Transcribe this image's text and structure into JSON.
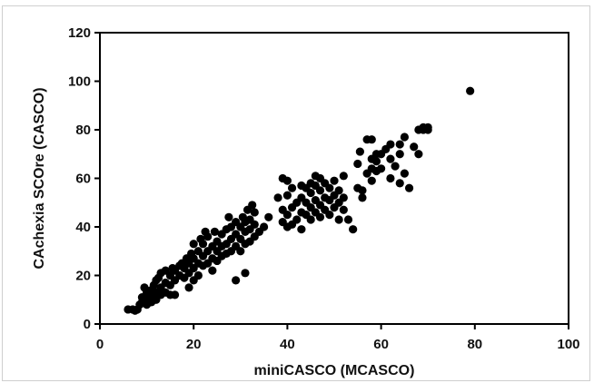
{
  "chart_data": {
    "type": "scatter",
    "title": "",
    "xlabel": "miniCASCO (MCASCO)",
    "ylabel": "CAchexia SCOre (CASCO)",
    "xlim": [
      0,
      100
    ],
    "ylim": [
      0,
      120
    ],
    "x_ticks": [
      0,
      20,
      40,
      60,
      80,
      100
    ],
    "y_ticks": [
      0,
      20,
      40,
      60,
      80,
      100,
      120
    ],
    "grid": false,
    "legend": "none",
    "marker_color": "#000000",
    "series": [
      {
        "points": [
          [
            6,
            6
          ],
          [
            7,
            6
          ],
          [
            7.5,
            5.5
          ],
          [
            8,
            6
          ],
          [
            8.5,
            8
          ],
          [
            9,
            9
          ],
          [
            9,
            11
          ],
          [
            9.5,
            15
          ],
          [
            10,
            8
          ],
          [
            10,
            10
          ],
          [
            10,
            13
          ],
          [
            10.5,
            12
          ],
          [
            11,
            9
          ],
          [
            11,
            11
          ],
          [
            11,
            14
          ],
          [
            11.5,
            16
          ],
          [
            12,
            10
          ],
          [
            12,
            13
          ],
          [
            12,
            18
          ],
          [
            12.5,
            19
          ],
          [
            13,
            12
          ],
          [
            13,
            15
          ],
          [
            13,
            21
          ],
          [
            14,
            13
          ],
          [
            14,
            17
          ],
          [
            14,
            22
          ],
          [
            15,
            12
          ],
          [
            15,
            16
          ],
          [
            15,
            20
          ],
          [
            15.5,
            23
          ],
          [
            16,
            12
          ],
          [
            16,
            18
          ],
          [
            16,
            22
          ],
          [
            17,
            20
          ],
          [
            17,
            24
          ],
          [
            17.5,
            25
          ],
          [
            18,
            19
          ],
          [
            18,
            23
          ],
          [
            18.5,
            27
          ],
          [
            19,
            15
          ],
          [
            19,
            21
          ],
          [
            19,
            25
          ],
          [
            19.5,
            29
          ],
          [
            20,
            18
          ],
          [
            20,
            23
          ],
          [
            20,
            27
          ],
          [
            20,
            33
          ],
          [
            21,
            20
          ],
          [
            21,
            25
          ],
          [
            21,
            30
          ],
          [
            21.5,
            35
          ],
          [
            22,
            24
          ],
          [
            22,
            28
          ],
          [
            22,
            33
          ],
          [
            22.5,
            38
          ],
          [
            23,
            25
          ],
          [
            23,
            30
          ],
          [
            23,
            36
          ],
          [
            24,
            22
          ],
          [
            24,
            27
          ],
          [
            24,
            32
          ],
          [
            24.5,
            38
          ],
          [
            25,
            26
          ],
          [
            25,
            30
          ],
          [
            25,
            34
          ],
          [
            26,
            28
          ],
          [
            26,
            32
          ],
          [
            26,
            37
          ],
          [
            27,
            29
          ],
          [
            27,
            33
          ],
          [
            27,
            39
          ],
          [
            27.5,
            44
          ],
          [
            28,
            30
          ],
          [
            28,
            35
          ],
          [
            28,
            40
          ],
          [
            29,
            18
          ],
          [
            29,
            32
          ],
          [
            29,
            37
          ],
          [
            29,
            42
          ],
          [
            30,
            30
          ],
          [
            30,
            35
          ],
          [
            30,
            40
          ],
          [
            30.5,
            44
          ],
          [
            31,
            21
          ],
          [
            31,
            33
          ],
          [
            31,
            38
          ],
          [
            31,
            42
          ],
          [
            31.5,
            47
          ],
          [
            32,
            34
          ],
          [
            32,
            39
          ],
          [
            32,
            43
          ],
          [
            32.5,
            49
          ],
          [
            33,
            36
          ],
          [
            33,
            41
          ],
          [
            33,
            46
          ],
          [
            34,
            38
          ],
          [
            35,
            40
          ],
          [
            36,
            44
          ],
          [
            38,
            52
          ],
          [
            39,
            42
          ],
          [
            39,
            47
          ],
          [
            39,
            60
          ],
          [
            40,
            40
          ],
          [
            40,
            45
          ],
          [
            40,
            53
          ],
          [
            40,
            59
          ],
          [
            41,
            41
          ],
          [
            41,
            48
          ],
          [
            41,
            56
          ],
          [
            42,
            43
          ],
          [
            42,
            50
          ],
          [
            43,
            39
          ],
          [
            43,
            46
          ],
          [
            43,
            52
          ],
          [
            43,
            57
          ],
          [
            44,
            45
          ],
          [
            44,
            50
          ],
          [
            44,
            56
          ],
          [
            45,
            43
          ],
          [
            45,
            48
          ],
          [
            45,
            54
          ],
          [
            45,
            58
          ],
          [
            46,
            46
          ],
          [
            46,
            51
          ],
          [
            46,
            57
          ],
          [
            46,
            61
          ],
          [
            47,
            44
          ],
          [
            47,
            49
          ],
          [
            47,
            55
          ],
          [
            47,
            60
          ],
          [
            48,
            47
          ],
          [
            48,
            52
          ],
          [
            48,
            58
          ],
          [
            49,
            45
          ],
          [
            49,
            51
          ],
          [
            49,
            56
          ],
          [
            50,
            48
          ],
          [
            50,
            53
          ],
          [
            50,
            59
          ],
          [
            51,
            43
          ],
          [
            51,
            50
          ],
          [
            51,
            55
          ],
          [
            52,
            47
          ],
          [
            52,
            52
          ],
          [
            52,
            61
          ],
          [
            53,
            43
          ],
          [
            54,
            39
          ],
          [
            55,
            56
          ],
          [
            55,
            66
          ],
          [
            55.5,
            71
          ],
          [
            56,
            52
          ],
          [
            56,
            55
          ],
          [
            57,
            62
          ],
          [
            57,
            76
          ],
          [
            58,
            59
          ],
          [
            58,
            64
          ],
          [
            58,
            68
          ],
          [
            58,
            76
          ],
          [
            59,
            63
          ],
          [
            59,
            67
          ],
          [
            59,
            70
          ],
          [
            60,
            64
          ],
          [
            60,
            70
          ],
          [
            61,
            72
          ],
          [
            62,
            60
          ],
          [
            62,
            68
          ],
          [
            62,
            74
          ],
          [
            63,
            65
          ],
          [
            64,
            58
          ],
          [
            64,
            70
          ],
          [
            64,
            74
          ],
          [
            65,
            77
          ],
          [
            65,
            62
          ],
          [
            66,
            56
          ],
          [
            67,
            73
          ],
          [
            68,
            70
          ],
          [
            68,
            80
          ],
          [
            69,
            80
          ],
          [
            69,
            81
          ],
          [
            70,
            80
          ],
          [
            70,
            81
          ],
          [
            79,
            96
          ]
        ]
      }
    ]
  }
}
